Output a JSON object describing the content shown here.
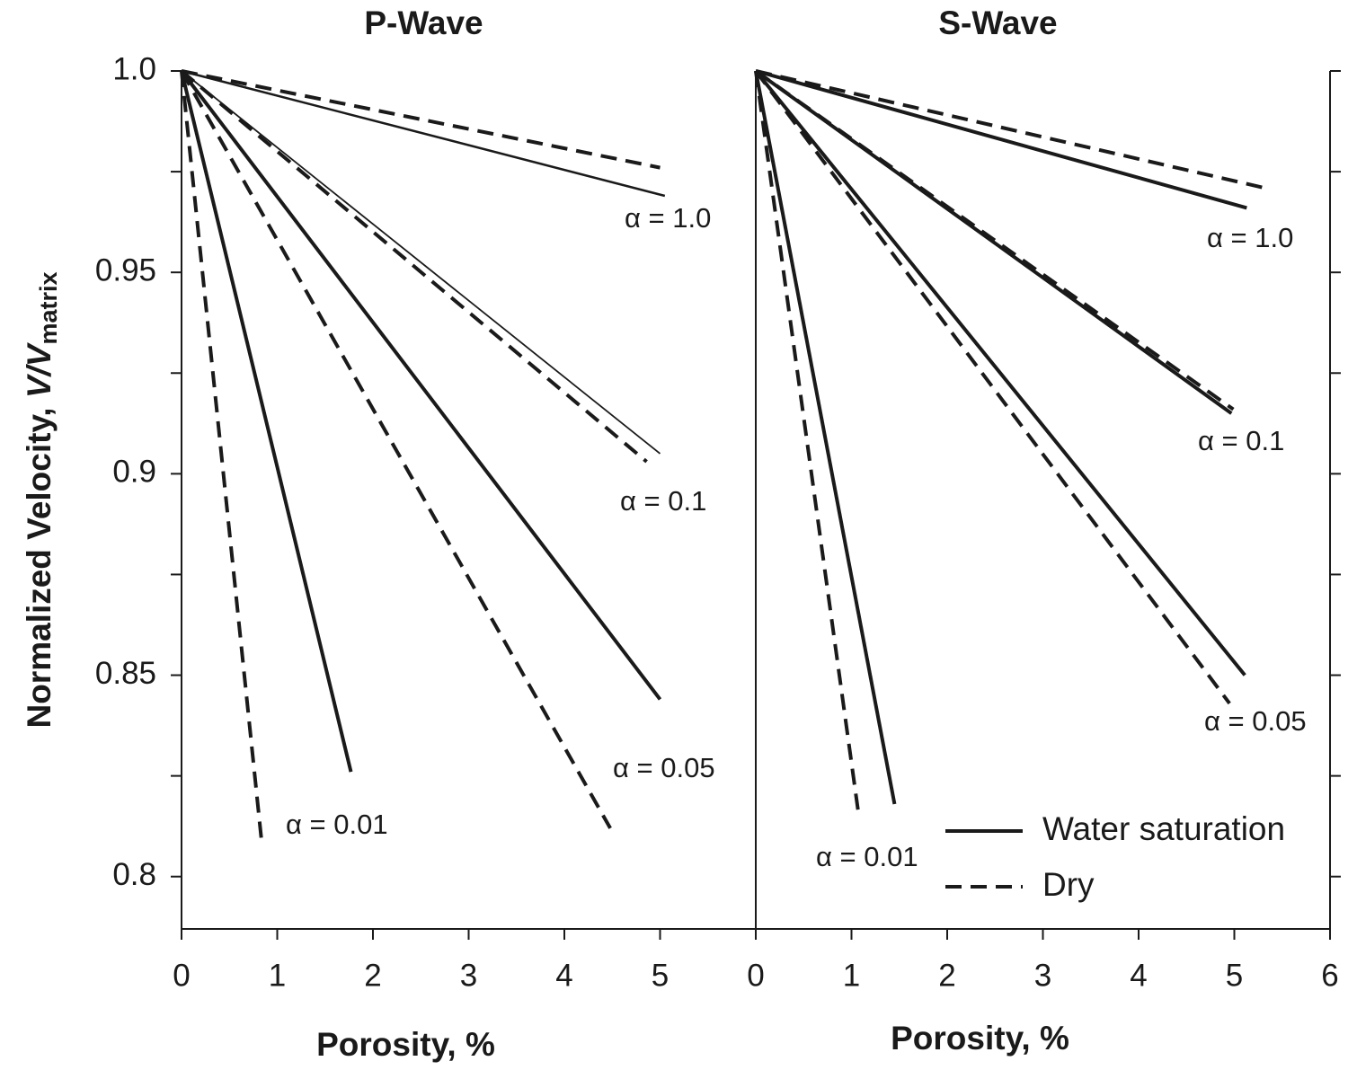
{
  "chart_data": [
    {
      "type": "line",
      "title": "P-Wave",
      "xlabel": "Porosity, %",
      "ylabel": "Normalized Velocity, ",
      "ylabel_var": "V/V",
      "ylabel_sub": "matrix",
      "xlim": [
        0,
        6
      ],
      "ylim": [
        0.787,
        1.0
      ],
      "xticks": [
        0,
        1,
        2,
        3,
        4,
        5
      ],
      "yticks": [
        0.8,
        0.85,
        0.9,
        0.95,
        {
          "value": 1.0,
          "label": "1.0"
        }
      ],
      "yminor": [
        0.825,
        0.875,
        0.925,
        0.975
      ],
      "groups": [
        {
          "label": "α = 1.0",
          "series": [
            {
              "name": "Water saturation",
              "linestyle": "solid",
              "linewidth": 2.5,
              "x": [
                0,
                5.05
              ],
              "values": [
                1.0,
                0.969
              ]
            },
            {
              "name": "Dry",
              "linestyle": "dashed",
              "linewidth": 4,
              "x": [
                0,
                5.0
              ],
              "values": [
                1.0,
                0.976
              ]
            }
          ]
        },
        {
          "label": "α = 0.1",
          "series": [
            {
              "name": "Water saturation",
              "linestyle": "solid",
              "linewidth": 1.8,
              "x": [
                0,
                5.0
              ],
              "values": [
                1.0,
                0.905
              ]
            },
            {
              "name": "Dry",
              "linestyle": "dashed",
              "linewidth": 4,
              "x": [
                0,
                4.86
              ],
              "values": [
                1.0,
                0.903
              ]
            }
          ]
        },
        {
          "label": "α = 0.05",
          "series": [
            {
              "name": "Water saturation",
              "linestyle": "solid",
              "linewidth": 4,
              "x": [
                0,
                5.0
              ],
              "values": [
                1.0,
                0.844
              ]
            },
            {
              "name": "Dry",
              "linestyle": "dashed",
              "linewidth": 4,
              "x": [
                0,
                4.48
              ],
              "values": [
                1.0,
                0.812
              ]
            }
          ]
        },
        {
          "label": "α = 0.01",
          "series": [
            {
              "name": "Water saturation",
              "linestyle": "solid",
              "linewidth": 4,
              "x": [
                0,
                1.77
              ],
              "values": [
                1.0,
                0.826
              ]
            },
            {
              "name": "Dry",
              "linestyle": "dashed",
              "linewidth": 4,
              "x": [
                0,
                0.84
              ],
              "values": [
                1.0,
                0.808
              ]
            }
          ]
        }
      ]
    },
    {
      "type": "line",
      "title": "S-Wave",
      "xlabel": "Porosity, %",
      "xlim": [
        0,
        6
      ],
      "ylim": [
        0.787,
        1.0
      ],
      "xticks": [
        0,
        1,
        2,
        3,
        4,
        5,
        6
      ],
      "ytick_marks": [
        0.8,
        0.825,
        0.85,
        0.875,
        0.9,
        0.925,
        0.95,
        0.975,
        1.0
      ],
      "legend": "lower right",
      "groups": [
        {
          "label": "α = 1.0",
          "series": [
            {
              "name": "Water saturation",
              "linestyle": "solid",
              "linewidth": 4,
              "x": [
                0,
                5.13
              ],
              "values": [
                1.0,
                0.966
              ]
            },
            {
              "name": "Dry",
              "linestyle": "dashed",
              "linewidth": 4,
              "x": [
                0,
                5.31
              ],
              "values": [
                1.0,
                0.971
              ]
            }
          ]
        },
        {
          "label": "α = 0.1",
          "series": [
            {
              "name": "Water saturation",
              "linestyle": "solid",
              "linewidth": 4,
              "x": [
                0,
                4.97
              ],
              "values": [
                1.0,
                0.915
              ]
            },
            {
              "name": "Dry",
              "linestyle": "dashed",
              "linewidth": 4,
              "x": [
                0,
                4.99
              ],
              "values": [
                1.0,
                0.916
              ]
            }
          ]
        },
        {
          "label": "α = 0.05",
          "series": [
            {
              "name": "Water saturation",
              "linestyle": "solid",
              "linewidth": 4,
              "x": [
                0,
                5.11
              ],
              "values": [
                1.0,
                0.85
              ]
            },
            {
              "name": "Dry",
              "linestyle": "dashed",
              "linewidth": 4,
              "x": [
                0,
                4.95
              ],
              "values": [
                1.0,
                0.843
              ]
            }
          ]
        },
        {
          "label": "α = 0.01",
          "series": [
            {
              "name": "Water saturation",
              "linestyle": "solid",
              "linewidth": 4,
              "x": [
                0,
                1.45
              ],
              "values": [
                1.0,
                0.818
              ]
            },
            {
              "name": "Dry",
              "linestyle": "dashed",
              "linewidth": 4,
              "x": [
                0,
                1.08
              ],
              "values": [
                1.0,
                0.8145
              ]
            }
          ]
        }
      ]
    }
  ]
}
